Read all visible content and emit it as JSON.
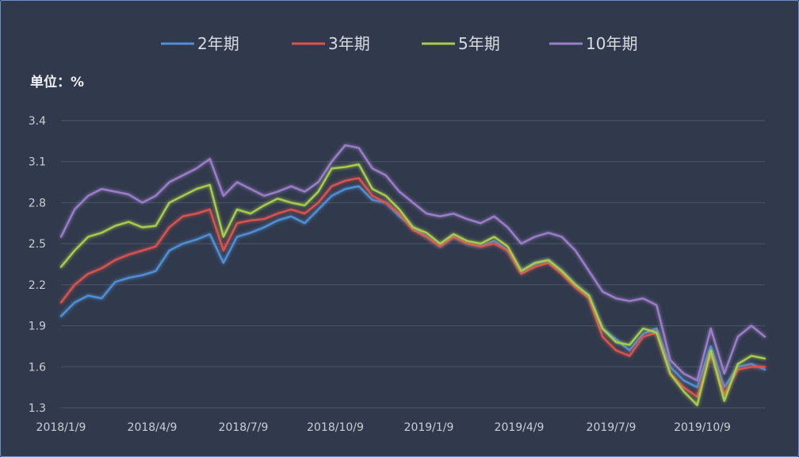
{
  "chart_data": {
    "type": "line",
    "unit_label": "单位：%",
    "legend_position": "top",
    "grid": true,
    "ylim": [
      1.3,
      3.4
    ],
    "yticks": [
      "1.3",
      "1.6",
      "1.9",
      "2.2",
      "2.5",
      "2.8",
      "3.1",
      "3.4"
    ],
    "xticks": [
      "2018/1/9",
      "2018/4/9",
      "2018/7/9",
      "2018/10/9",
      "2019/1/9",
      "2019/4/9",
      "2019/7/9",
      "2019/10/9"
    ],
    "x": [
      "2018/1/9",
      "2018/1/23",
      "2018/2/6",
      "2018/2/20",
      "2018/3/6",
      "2018/3/20",
      "2018/4/3",
      "2018/4/17",
      "2018/5/1",
      "2018/5/15",
      "2018/5/29",
      "2018/6/5",
      "2018/6/12",
      "2018/6/26",
      "2018/7/10",
      "2018/7/24",
      "2018/8/7",
      "2018/8/21",
      "2018/9/4",
      "2018/9/18",
      "2018/10/2",
      "2018/10/16",
      "2018/10/30",
      "2018/11/13",
      "2018/11/27",
      "2018/12/11",
      "2018/12/25",
      "2019/1/8",
      "2019/1/22",
      "2019/2/5",
      "2019/2/19",
      "2019/3/5",
      "2019/3/19",
      "2019/4/2",
      "2019/4/16",
      "2019/4/30",
      "2019/5/14",
      "2019/5/28",
      "2019/6/11",
      "2019/6/25",
      "2019/7/9",
      "2019/7/23",
      "2019/8/6",
      "2019/8/20",
      "2019/9/3",
      "2019/9/17",
      "2019/10/1",
      "2019/10/15",
      "2019/10/29",
      "2019/11/12",
      "2019/11/26",
      "2019/12/10",
      "2019/12/20"
    ],
    "series": [
      {
        "name": "2年期",
        "color": "#4f8fd6",
        "values": [
          1.97,
          2.07,
          2.12,
          2.1,
          2.22,
          2.25,
          2.27,
          2.3,
          2.45,
          2.5,
          2.53,
          2.57,
          2.36,
          2.55,
          2.58,
          2.62,
          2.67,
          2.7,
          2.65,
          2.75,
          2.85,
          2.9,
          2.92,
          2.82,
          2.8,
          2.7,
          2.62,
          2.55,
          2.48,
          2.55,
          2.5,
          2.48,
          2.52,
          2.45,
          2.3,
          2.35,
          2.38,
          2.3,
          2.2,
          2.12,
          1.88,
          1.8,
          1.72,
          1.84,
          1.88,
          1.6,
          1.5,
          1.45,
          1.75,
          1.45,
          1.6,
          1.62,
          1.58
        ]
      },
      {
        "name": "3年期",
        "color": "#d9534f",
        "values": [
          2.07,
          2.2,
          2.28,
          2.32,
          2.38,
          2.42,
          2.45,
          2.48,
          2.62,
          2.7,
          2.72,
          2.75,
          2.45,
          2.65,
          2.67,
          2.68,
          2.72,
          2.75,
          2.72,
          2.8,
          2.92,
          2.96,
          2.98,
          2.85,
          2.8,
          2.72,
          2.6,
          2.55,
          2.48,
          2.55,
          2.5,
          2.48,
          2.5,
          2.45,
          2.28,
          2.33,
          2.36,
          2.28,
          2.18,
          2.1,
          1.82,
          1.72,
          1.68,
          1.82,
          1.85,
          1.55,
          1.45,
          1.38,
          1.7,
          1.4,
          1.58,
          1.6,
          1.6
        ]
      },
      {
        "name": "5年期",
        "color": "#a8cc4e",
        "values": [
          2.33,
          2.45,
          2.55,
          2.58,
          2.63,
          2.66,
          2.62,
          2.63,
          2.8,
          2.85,
          2.9,
          2.93,
          2.55,
          2.75,
          2.72,
          2.78,
          2.83,
          2.8,
          2.78,
          2.88,
          3.05,
          3.06,
          3.08,
          2.9,
          2.85,
          2.75,
          2.62,
          2.58,
          2.5,
          2.57,
          2.52,
          2.5,
          2.55,
          2.48,
          2.3,
          2.36,
          2.38,
          2.3,
          2.2,
          2.12,
          1.88,
          1.78,
          1.76,
          1.88,
          1.85,
          1.55,
          1.42,
          1.32,
          1.72,
          1.35,
          1.62,
          1.68,
          1.66
        ]
      },
      {
        "name": "10年期",
        "color": "#9b7ec8",
        "values": [
          2.55,
          2.75,
          2.85,
          2.9,
          2.88,
          2.86,
          2.8,
          2.85,
          2.95,
          3.0,
          3.05,
          3.12,
          2.85,
          2.95,
          2.9,
          2.85,
          2.88,
          2.92,
          2.88,
          2.95,
          3.1,
          3.22,
          3.2,
          3.05,
          3.0,
          2.88,
          2.8,
          2.72,
          2.7,
          2.72,
          2.68,
          2.65,
          2.7,
          2.62,
          2.5,
          2.55,
          2.58,
          2.55,
          2.45,
          2.3,
          2.15,
          2.1,
          2.08,
          2.1,
          2.05,
          1.65,
          1.55,
          1.5,
          1.88,
          1.55,
          1.82,
          1.9,
          1.82
        ]
      }
    ]
  }
}
